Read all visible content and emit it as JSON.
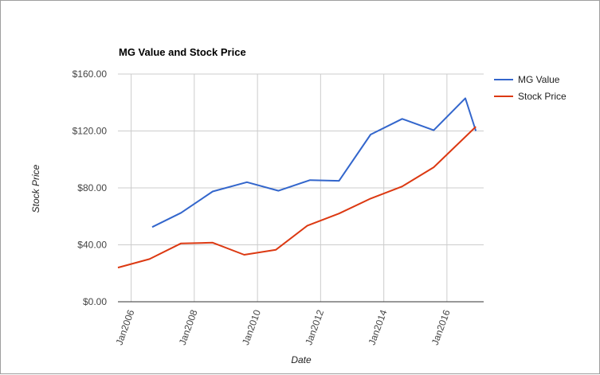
{
  "chart_data": {
    "type": "line",
    "title": "MG Value and Stock Price",
    "xlabel": "Date",
    "ylabel": "Stock Price",
    "x_ticks": [
      "Jan2006",
      "Jan2008",
      "Jan2010",
      "Jan2012",
      "Jan2014",
      "Jan2016"
    ],
    "y_ticks": [
      "$0.00",
      "$40.00",
      "$80.00",
      "$120.00",
      "$160.00"
    ],
    "xlim": [
      "2005-08-01",
      "2017-03-01"
    ],
    "ylim": [
      0,
      160
    ],
    "grid": true,
    "legend": "right",
    "series": [
      {
        "name": "MG Value",
        "color": "#3366cc",
        "points": [
          [
            "2006-09-01",
            52.5
          ],
          [
            "2007-08-01",
            62.5
          ],
          [
            "2008-08-01",
            77.5
          ],
          [
            "2009-09-01",
            84.0
          ],
          [
            "2010-09-01",
            78.0
          ],
          [
            "2011-09-01",
            85.5
          ],
          [
            "2012-08-01",
            85.0
          ],
          [
            "2013-08-01",
            117.5
          ],
          [
            "2014-08-01",
            128.5
          ],
          [
            "2015-08-01",
            120.5
          ],
          [
            "2016-08-01",
            143.0
          ],
          [
            "2016-12-01",
            120.0
          ]
        ]
      },
      {
        "name": "Stock Price",
        "color": "#dc3912",
        "points": [
          [
            "2005-08-01",
            24.0
          ],
          [
            "2006-08-01",
            30.0
          ],
          [
            "2007-08-01",
            41.0
          ],
          [
            "2008-08-01",
            41.5
          ],
          [
            "2009-08-01",
            33.0
          ],
          [
            "2010-08-01",
            36.5
          ],
          [
            "2011-08-01",
            53.5
          ],
          [
            "2012-08-01",
            62.0
          ],
          [
            "2013-08-01",
            72.5
          ],
          [
            "2014-08-01",
            81.0
          ],
          [
            "2015-08-01",
            94.5
          ],
          [
            "2016-12-01",
            123.0
          ]
        ]
      }
    ]
  }
}
